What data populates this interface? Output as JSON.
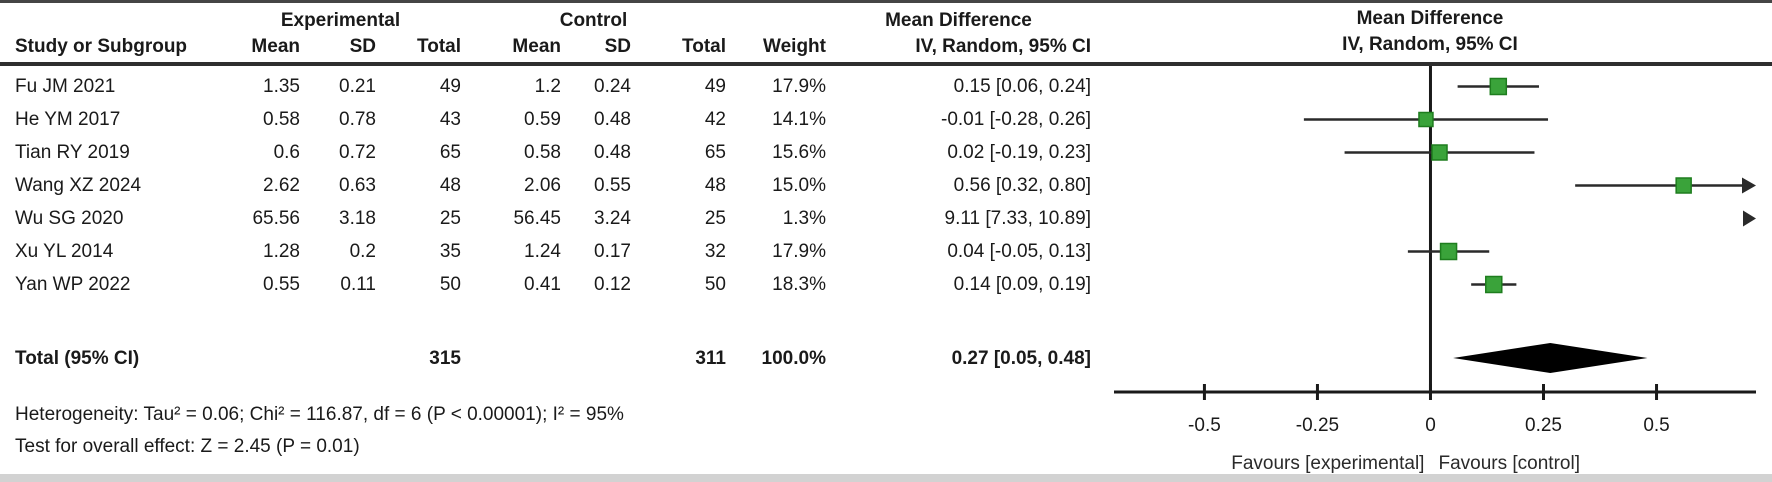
{
  "table": {
    "group_headers": {
      "experimental": "Experimental",
      "control": "Control",
      "effect": "Mean Difference"
    },
    "col_headers": {
      "study": "Study or Subgroup",
      "mean": "Mean",
      "sd": "SD",
      "total": "Total",
      "mean2": "Mean",
      "sd2": "SD",
      "total2": "Total",
      "weight": "Weight",
      "ci": "IV, Random, 95% CI"
    },
    "total_row": {
      "label": "Total (95% CI)",
      "e_total": "315",
      "c_total": "311",
      "weight": "100.0%",
      "ci": "0.27 [0.05, 0.48]"
    },
    "footer": {
      "heterogeneity": "Heterogeneity: Tau² = 0.06; Chi² = 116.87, df = 6 (P < 0.00001); I² = 95%",
      "overall_effect": "Test for overall effect: Z = 2.45 (P = 0.01)"
    }
  },
  "plot": {
    "header_line1": "Mean Difference",
    "header_line2": "IV, Random, 95% CI",
    "favours_left": "Favours [experimental]",
    "favours_right": "Favours [control]"
  },
  "chart_data": {
    "type": "forest",
    "effect_measure": "Mean Difference",
    "model": "IV, Random, 95% CI",
    "x_range": [
      -0.7,
      0.72
    ],
    "ticks": [
      -0.5,
      -0.25,
      0,
      0.25,
      0.5
    ],
    "tick_labels": [
      "-0.5",
      "-0.25",
      "0",
      "0.25",
      "0.5"
    ],
    "studies": [
      {
        "name": "Fu JM 2021",
        "e_mean": "1.35",
        "e_sd": "0.21",
        "e_total": "49",
        "c_mean": "1.2",
        "c_sd": "0.24",
        "c_total": "49",
        "weight": "17.9%",
        "weight_pct": 17.9,
        "ci_text": "0.15 [0.06, 0.24]",
        "md": 0.15,
        "ci_low": 0.06,
        "ci_high": 0.24
      },
      {
        "name": "He YM 2017",
        "e_mean": "0.58",
        "e_sd": "0.78",
        "e_total": "43",
        "c_mean": "0.59",
        "c_sd": "0.48",
        "c_total": "42",
        "weight": "14.1%",
        "weight_pct": 14.1,
        "ci_text": "-0.01 [-0.28, 0.26]",
        "md": -0.01,
        "ci_low": -0.28,
        "ci_high": 0.26
      },
      {
        "name": "Tian RY 2019",
        "e_mean": "0.6",
        "e_sd": "0.72",
        "e_total": "65",
        "c_mean": "0.58",
        "c_sd": "0.48",
        "c_total": "65",
        "weight": "15.6%",
        "weight_pct": 15.6,
        "ci_text": "0.02 [-0.19, 0.23]",
        "md": 0.02,
        "ci_low": -0.19,
        "ci_high": 0.23
      },
      {
        "name": "Wang XZ 2024",
        "e_mean": "2.62",
        "e_sd": "0.63",
        "e_total": "48",
        "c_mean": "2.06",
        "c_sd": "0.55",
        "c_total": "48",
        "weight": "15.0%",
        "weight_pct": 15.0,
        "ci_text": "0.56 [0.32, 0.80]",
        "md": 0.56,
        "ci_low": 0.32,
        "ci_high": 0.8
      },
      {
        "name": "Wu SG 2020",
        "e_mean": "65.56",
        "e_sd": "3.18",
        "e_total": "25",
        "c_mean": "56.45",
        "c_sd": "3.24",
        "c_total": "25",
        "weight": "1.3%",
        "weight_pct": 1.3,
        "ci_text": "9.11 [7.33, 10.89]",
        "md": 9.11,
        "ci_low": 7.33,
        "ci_high": 10.89
      },
      {
        "name": "Xu YL 2014",
        "e_mean": "1.28",
        "e_sd": "0.2",
        "e_total": "35",
        "c_mean": "1.24",
        "c_sd": "0.17",
        "c_total": "32",
        "weight": "17.9%",
        "weight_pct": 17.9,
        "ci_text": "0.04 [-0.05, 0.13]",
        "md": 0.04,
        "ci_low": -0.05,
        "ci_high": 0.13
      },
      {
        "name": "Yan WP 2022",
        "e_mean": "0.55",
        "e_sd": "0.11",
        "e_total": "50",
        "c_mean": "0.41",
        "c_sd": "0.12",
        "c_total": "50",
        "weight": "18.3%",
        "weight_pct": 18.3,
        "ci_text": "0.14 [0.09, 0.19]",
        "md": 0.14,
        "ci_low": 0.09,
        "ci_high": 0.19
      }
    ],
    "total": {
      "md": 0.27,
      "ci_low": 0.05,
      "ci_high": 0.48
    },
    "colors": {
      "marker_fill": "#3aa33a",
      "marker_stroke": "#1e7d1e",
      "ci_line": "#2a2a2a",
      "diamond": "#000000",
      "axis": "#1a1a1a"
    }
  }
}
